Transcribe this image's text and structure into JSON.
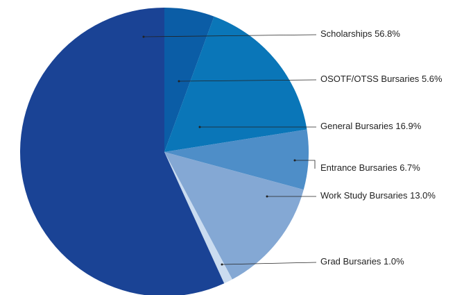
{
  "chart_data": {
    "type": "pie",
    "categories": [
      "OSOTF/OTSS Bursaries",
      "General Bursaries",
      "Entrance Bursaries",
      "Work Study Bursaries",
      "Grad Bursaries",
      "Scholarships"
    ],
    "values": [
      5.6,
      16.9,
      6.7,
      13.0,
      1.0,
      56.8
    ],
    "value_labels": [
      "5.6%",
      "16.9%",
      "6.7%",
      "13.0%",
      "1.0%",
      "56.8%"
    ],
    "colors": [
      "#0b5da6",
      "#0a76b8",
      "#4e8ec8",
      "#84a8d4",
      "#cadcf0",
      "#1a4395"
    ]
  }
}
